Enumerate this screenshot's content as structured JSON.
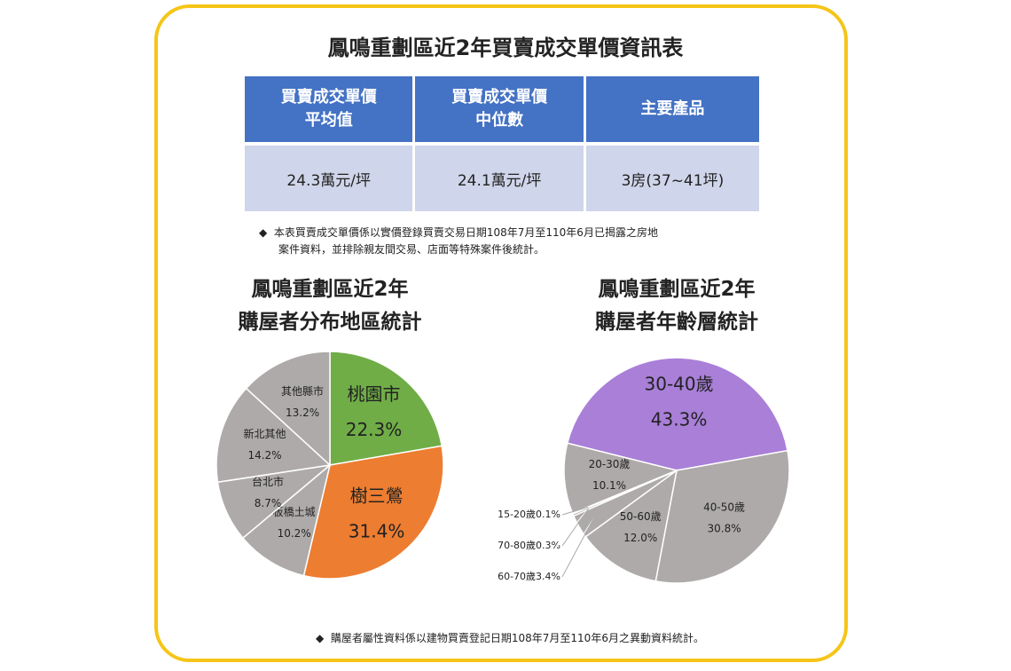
{
  "title": "鳳鳴重劃區近2年買賣成交單價資訊表",
  "table": {
    "headers": [
      [
        "買賣成交單價",
        "平均值"
      ],
      [
        "買賣成交單價",
        "中位數"
      ],
      [
        "主要產品"
      ]
    ],
    "rows": [
      [
        "24.3萬元/坪",
        "24.1萬元/坪",
        "3房(37~41坪)"
      ]
    ]
  },
  "note1": [
    "本表買賣成交單價係以實價登錄買賣交易日期108年7月至110年6月已揭露之房地",
    "案件資料，並排除親友間交易、店面等特殊案件後統計。"
  ],
  "chart_data": [
    {
      "type": "pie",
      "title": [
        "鳳鳴重劃區近2年",
        "購屋者分布地區統計"
      ],
      "categories": [
        "桃園市",
        "樹三鶯",
        "板橋土城",
        "台北市",
        "新北其他",
        "其他縣市"
      ],
      "values": [
        22.3,
        31.4,
        10.2,
        8.7,
        14.2,
        13.2
      ],
      "value_labels": [
        "22.3%",
        "31.4%",
        "10.2%",
        "8.7%",
        "14.2%",
        "13.2%"
      ],
      "colors": [
        "#70ad47",
        "#ed7d31",
        "#aeaaaa",
        "#aeaaaa",
        "#aeaaaa",
        "#aeaaaa"
      ]
    },
    {
      "type": "pie",
      "title": [
        "鳳鳴重劃區近2年",
        "購屋者年齡層統計"
      ],
      "categories": [
        "30-40歲",
        "40-50歲",
        "50-60歲",
        "60-70歲",
        "70-80歲",
        "15-20歲",
        "20-30歲"
      ],
      "values": [
        43.3,
        30.8,
        12.0,
        3.4,
        0.3,
        0.1,
        10.1
      ],
      "value_labels": [
        "43.3%",
        "30.8%",
        "12.0%",
        "3.4%",
        "0.3%",
        "0.1%",
        "10.1%"
      ],
      "colors": [
        "#a97fd8",
        "#aeaaaa",
        "#aeaaaa",
        "#aeaaaa",
        "#aeaaaa",
        "#aeaaaa",
        "#aeaaaa"
      ]
    }
  ],
  "note2": "購屋者屬性資料係以建物買賣登記日期108年7月至110年6月之異動資料統計。"
}
